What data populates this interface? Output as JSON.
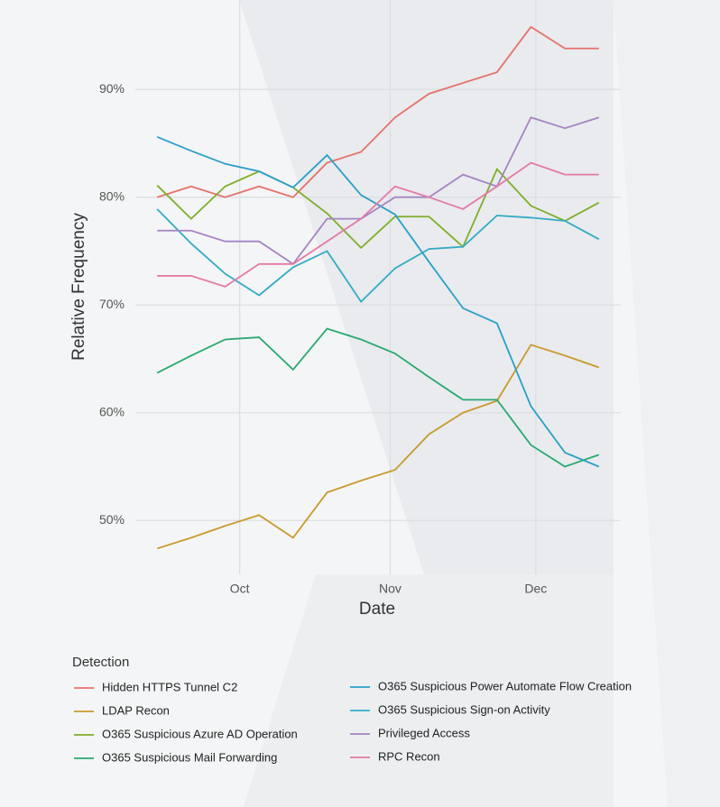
{
  "chart_data": {
    "type": "line",
    "x_label": "Date",
    "y_label": "Relative Frequency",
    "legend_title": "Detection",
    "x": [
      0,
      7,
      14,
      21,
      28,
      35,
      42,
      49,
      56,
      63,
      70,
      77,
      84,
      91
    ],
    "xlim": [
      -4.5,
      95.5
    ],
    "xticks": [
      {
        "value": 17,
        "label": "Oct"
      },
      {
        "value": 48,
        "label": "Nov"
      },
      {
        "value": 78,
        "label": "Dec"
      }
    ],
    "ylim": [
      45,
      98.3
    ],
    "yticks": [
      {
        "value": 50,
        "label": "50%"
      },
      {
        "value": 60,
        "label": "60%"
      },
      {
        "value": 70,
        "label": "70%"
      },
      {
        "value": 80,
        "label": "80%"
      },
      {
        "value": 90,
        "label": "90%"
      }
    ],
    "grid": true,
    "series": [
      {
        "name": "Hidden HTTPS Tunnel C2",
        "color": "#e4736a",
        "values": [
          80,
          81,
          80,
          81,
          80,
          83.2,
          84.2,
          87.4,
          89.6,
          90.6,
          91.6,
          95.8,
          93.8,
          93.8
        ]
      },
      {
        "name": "LDAP Recon",
        "color": "#c99a2e",
        "values": [
          47.4,
          48.4,
          49.5,
          50.5,
          48.4,
          52.6,
          53.7,
          54.7,
          58.0,
          60.0,
          61.1,
          66.3,
          65.3,
          64.2
        ]
      },
      {
        "name": "O365 Suspicious Azure AD Operation",
        "color": "#7fae2b",
        "values": [
          81.1,
          78.0,
          81.0,
          82.4,
          80.9,
          78.5,
          75.3,
          78.2,
          78.2,
          75.4,
          82.6,
          79.2,
          77.8,
          79.5
        ]
      },
      {
        "name": "O365 Suspicious Mail Forwarding",
        "color": "#2aa872",
        "values": [
          63.7,
          65.3,
          66.8,
          67.0,
          64.0,
          67.8,
          66.8,
          65.5,
          63.3,
          61.2,
          61.2,
          57.0,
          55.0,
          56.1
        ]
      },
      {
        "name": "O365 Suspicious Power Automate Flow Creation",
        "color": "#2a9fc9",
        "values": [
          85.6,
          84.3,
          83.1,
          82.4,
          80.9,
          83.9,
          80.2,
          78.4,
          74.0,
          69.7,
          68.3,
          60.6,
          56.3,
          55.0
        ]
      },
      {
        "name": "O365 Suspicious Sign-on Activity",
        "color": "#33abc4",
        "values": [
          78.9,
          75.7,
          72.9,
          70.9,
          73.5,
          75.0,
          70.3,
          73.4,
          75.2,
          75.4,
          78.3,
          78.1,
          77.8,
          76.1
        ]
      },
      {
        "name": "Privileged Access",
        "color": "#a585c1",
        "values": [
          76.9,
          76.9,
          75.9,
          75.9,
          73.8,
          78.0,
          78.0,
          80.0,
          80.0,
          82.1,
          81.0,
          87.4,
          86.4,
          87.4
        ]
      },
      {
        "name": "RPC Recon",
        "color": "#e37aa6",
        "values": [
          72.7,
          72.7,
          71.7,
          73.8,
          73.8,
          75.9,
          78.0,
          81.0,
          80.0,
          78.9,
          81.0,
          83.2,
          82.1,
          82.1
        ]
      }
    ]
  }
}
